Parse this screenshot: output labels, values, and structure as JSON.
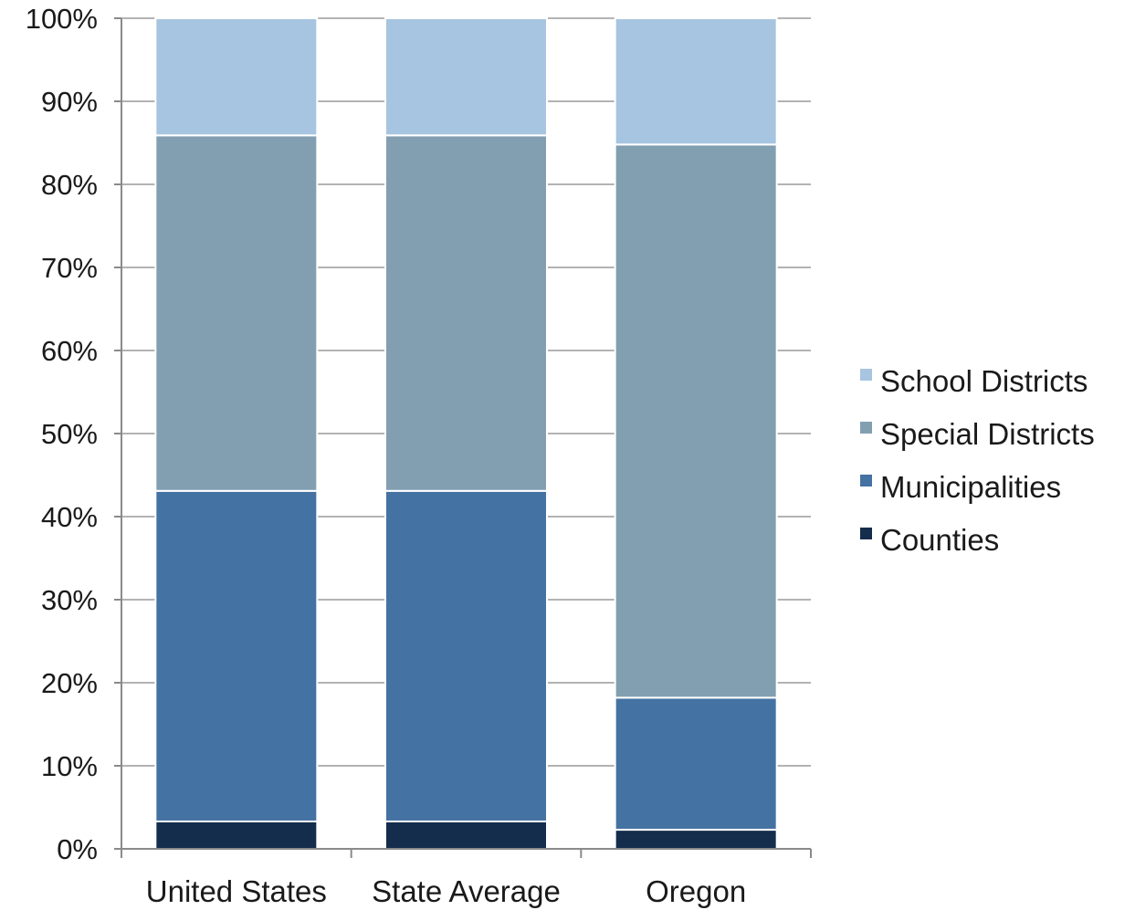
{
  "chart_data": {
    "type": "bar",
    "stacked": true,
    "categories": [
      "United States",
      "State Average",
      "Oregon"
    ],
    "series": [
      {
        "name": "Counties",
        "color": "#142d4c",
        "values": [
          3.3,
          3.3,
          2.3
        ]
      },
      {
        "name": "Municipalities",
        "color": "#4472a2",
        "values": [
          39.8,
          39.8,
          15.9
        ]
      },
      {
        "name": "Special Districts",
        "color": "#829fb2",
        "values": [
          42.8,
          42.8,
          66.6
        ]
      },
      {
        "name": "School Districts",
        "color": "#a7c5e0",
        "values": [
          14.1,
          14.1,
          15.2
        ]
      }
    ],
    "yticks": [
      "0%",
      "10%",
      "20%",
      "30%",
      "40%",
      "50%",
      "60%",
      "70%",
      "80%",
      "90%",
      "100%"
    ],
    "ylim": [
      0,
      100
    ],
    "grid": true,
    "legend_position": "right",
    "legend_order": [
      "School Districts",
      "Special Districts",
      "Municipalities",
      "Counties"
    ]
  }
}
